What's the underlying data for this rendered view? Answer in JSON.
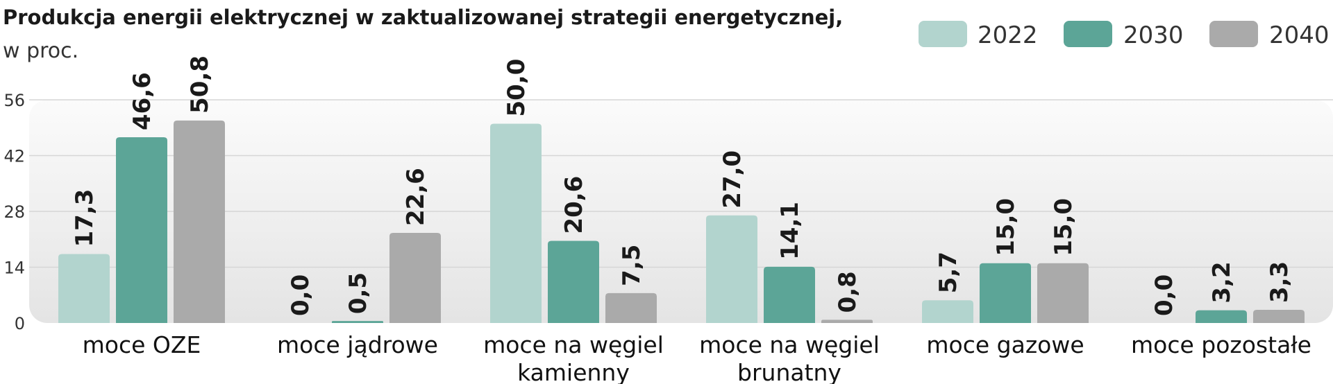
{
  "chart_data": {
    "type": "bar",
    "title": "Produkcja energii elektrycznej w zaktualizowanej strategii energetycznej,",
    "subtitle": "w proc.",
    "categories": [
      [
        "moce OZE"
      ],
      [
        "moce jądrowe"
      ],
      [
        "moce na węgiel",
        "kamienny"
      ],
      [
        "moce na węgiel",
        "brunatny"
      ],
      [
        "moce gazowe"
      ],
      [
        "moce pozostałe"
      ]
    ],
    "series": [
      {
        "name": "2022",
        "color": "#b2d4ce",
        "values": [
          17.3,
          0.0,
          50.0,
          27.0,
          5.7,
          0.0
        ],
        "labels": [
          "17,3",
          "0,0",
          "50,0",
          "27,0",
          "5,7",
          "0,0"
        ]
      },
      {
        "name": "2030",
        "color": "#5ca597",
        "values": [
          46.6,
          0.5,
          20.6,
          14.1,
          15.0,
          3.2
        ],
        "labels": [
          "46,6",
          "0,5",
          "20,6",
          "14,1",
          "15,0",
          "3,2"
        ]
      },
      {
        "name": "2040",
        "color": "#aaaaaa",
        "values": [
          50.8,
          22.6,
          7.5,
          0.8,
          15.0,
          3.3
        ],
        "labels": [
          "50,8",
          "22,6",
          "7,5",
          "0,8",
          "15,0",
          "3,3"
        ]
      }
    ],
    "ylim": [
      0,
      56
    ],
    "yticks": [
      0,
      14,
      28,
      42,
      56
    ],
    "grid": true,
    "legend": "top-right"
  }
}
